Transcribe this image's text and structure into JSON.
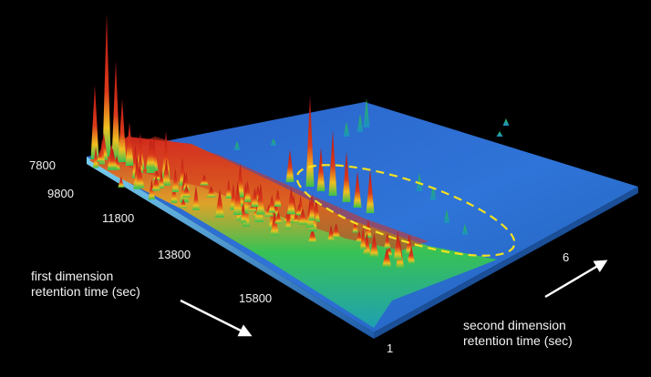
{
  "chart_data": {
    "type": "surface",
    "xlabel": [
      "first dimension",
      "retention time (sec)"
    ],
    "ylabel": [
      "second dimension",
      "retention time (sec)"
    ],
    "x_ticks": [
      "7800",
      "9800",
      "11800",
      "13800",
      "15800"
    ],
    "y_ticks": [
      "1",
      "6"
    ],
    "xlim": [
      7800,
      15800
    ],
    "ylim": [
      1,
      6
    ],
    "grid": false,
    "colors": {
      "background": "#000000",
      "plane": "#2f6fd0",
      "low": "#1e8fd0",
      "mid": "#2ec85a",
      "high": "#f0e020",
      "peak": "#c81818",
      "highlight_ellipse": "#f5e11f",
      "arrows": "#ffffff"
    }
  }
}
